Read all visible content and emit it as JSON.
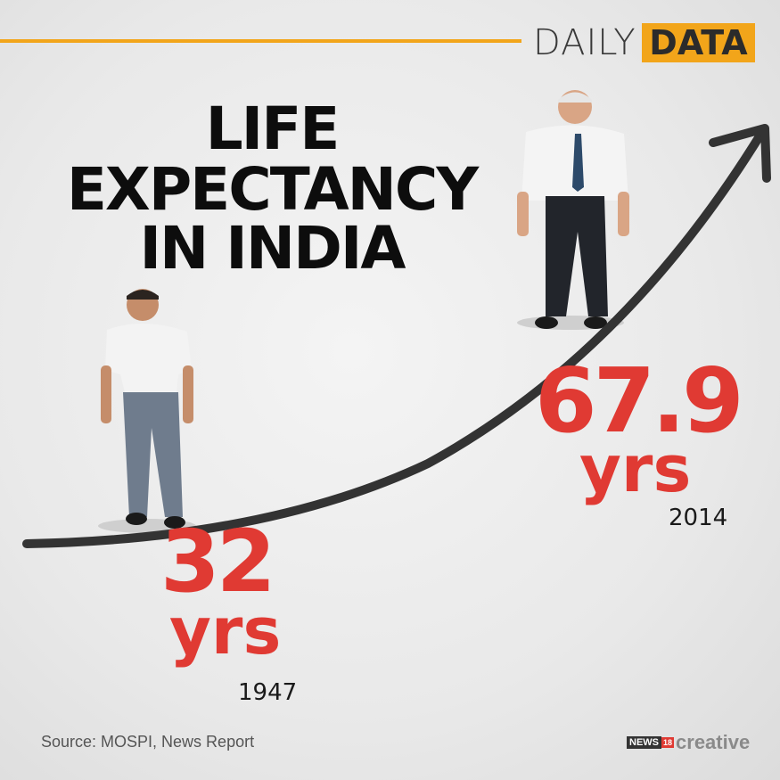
{
  "header": {
    "brand_light": "DAILY",
    "brand_bold": "DATA"
  },
  "title": {
    "line1": "LIFE",
    "line2": "EXPECTANCY",
    "line3": "IN INDIA"
  },
  "points": [
    {
      "value": "32",
      "unit": "yrs",
      "year": "1947"
    },
    {
      "value": "67.9",
      "unit": "yrs",
      "year": "2014"
    }
  ],
  "footer": {
    "source": "Source: MOSPI, News Report",
    "logo_news": "NEWS",
    "logo_18": "18",
    "logo_creative": "creative"
  },
  "colors": {
    "accent": "#f2a51a",
    "value": "#e03a33",
    "arrow": "#333333"
  }
}
